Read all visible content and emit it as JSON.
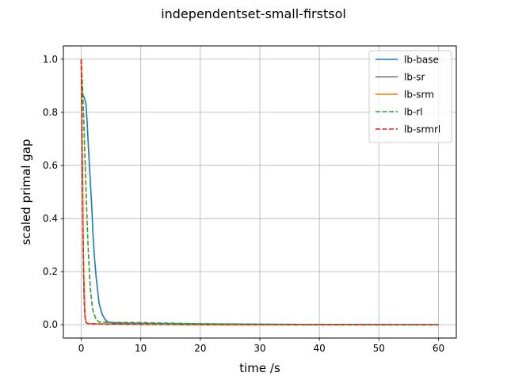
{
  "chart_data": {
    "type": "line",
    "title": "independentset-small-firstsol",
    "xlabel": "time /s",
    "ylabel": "scaled primal gap",
    "xlim": [
      -3,
      63
    ],
    "ylim": [
      -0.05,
      1.05
    ],
    "xticks": [
      0,
      10,
      20,
      30,
      40,
      50,
      60
    ],
    "yticks": [
      0.0,
      0.2,
      0.4,
      0.6,
      0.8,
      1.0
    ],
    "xtick_labels": [
      "0",
      "10",
      "20",
      "30",
      "40",
      "50",
      "60"
    ],
    "ytick_labels": [
      "0.0",
      "0.2",
      "0.4",
      "0.6",
      "0.8",
      "1.0"
    ],
    "grid": true,
    "legend_position": "top-right",
    "series": [
      {
        "name": "lb-base",
        "color": "#1f77b4",
        "style": "solid",
        "x": [
          0,
          0.2,
          0.4,
          0.6,
          0.8,
          1.0,
          1.2,
          1.5,
          1.8,
          2.0,
          2.2,
          2.5,
          2.8,
          3.0,
          3.5,
          4.0,
          4.5,
          5.0,
          6.0,
          8.0,
          10.0,
          20.0,
          30.0,
          40.0,
          50.0,
          60.0
        ],
        "y": [
          0.91,
          0.87,
          0.86,
          0.85,
          0.83,
          0.76,
          0.67,
          0.55,
          0.43,
          0.33,
          0.26,
          0.18,
          0.12,
          0.08,
          0.04,
          0.02,
          0.01,
          0.008,
          0.007,
          0.006,
          0.005,
          0.003,
          0.002,
          0.001,
          0.0005,
          0.0
        ]
      },
      {
        "name": "lb-sr",
        "color": "#7f7f7f",
        "style": "solid",
        "x": [
          0,
          0.1,
          0.2,
          0.3,
          0.4,
          0.5,
          0.6,
          0.7,
          0.8,
          1.0,
          1.5,
          3.0,
          10.0,
          20.0,
          40.0,
          60.0
        ],
        "y": [
          1.0,
          0.8,
          0.55,
          0.35,
          0.2,
          0.1,
          0.05,
          0.02,
          0.01,
          0.005,
          0.004,
          0.003,
          0.002,
          0.001,
          0.0005,
          0.0
        ]
      },
      {
        "name": "lb-srm",
        "color": "#ff7f0e",
        "style": "solid",
        "x": [
          0,
          0.1,
          0.2,
          0.3,
          0.4,
          0.5,
          0.6,
          0.7,
          0.8,
          1.0,
          1.5,
          3.0,
          10.0,
          20.0,
          40.0,
          60.0
        ],
        "y": [
          1.0,
          0.82,
          0.58,
          0.37,
          0.21,
          0.11,
          0.05,
          0.02,
          0.01,
          0.005,
          0.004,
          0.003,
          0.002,
          0.001,
          0.0005,
          0.0
        ]
      },
      {
        "name": "lb-rl",
        "color": "#2ca02c",
        "style": "dashed",
        "x": [
          0,
          0.2,
          0.4,
          0.6,
          0.8,
          1.0,
          1.2,
          1.4,
          1.6,
          1.8,
          2.0,
          2.5,
          3.0,
          5.0,
          10.0,
          20.0,
          30.0,
          40.0,
          60.0
        ],
        "y": [
          1.0,
          0.9,
          0.79,
          0.65,
          0.51,
          0.38,
          0.27,
          0.18,
          0.12,
          0.08,
          0.05,
          0.02,
          0.01,
          0.009,
          0.008,
          0.004,
          0.002,
          0.001,
          0.0
        ]
      },
      {
        "name": "lb-srmrl",
        "color": "#d62728",
        "style": "dashed",
        "x": [
          0,
          0.1,
          0.2,
          0.3,
          0.4,
          0.5,
          0.6,
          0.7,
          0.8,
          1.0,
          1.5,
          3.0,
          10.0,
          20.0,
          40.0,
          60.0
        ],
        "y": [
          1.0,
          0.78,
          0.54,
          0.34,
          0.19,
          0.09,
          0.04,
          0.02,
          0.01,
          0.005,
          0.004,
          0.003,
          0.002,
          0.001,
          0.0005,
          0.0
        ]
      }
    ]
  }
}
